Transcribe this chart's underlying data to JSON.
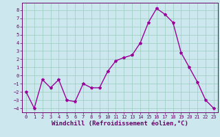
{
  "x": [
    0,
    1,
    2,
    3,
    4,
    5,
    6,
    7,
    8,
    9,
    10,
    11,
    12,
    13,
    14,
    15,
    16,
    17,
    18,
    19,
    20,
    21,
    22,
    23
  ],
  "y": [
    -2,
    -4,
    -0.5,
    -1.5,
    -0.5,
    -3,
    -3.2,
    -1,
    -1.5,
    -1.5,
    0.5,
    1.8,
    2.2,
    2.5,
    4,
    6.5,
    8.2,
    7.5,
    6.5,
    2.8,
    1.0,
    -0.8,
    -3,
    -4
  ],
  "line_color": "#990099",
  "marker": "*",
  "marker_size": 3,
  "bg_color": "#cce8ee",
  "grid_color": "#99ccbb",
  "xlabel": "Windchill (Refroidissement éolien,°C)",
  "xlabel_color": "#660066",
  "xlim": [
    -0.5,
    23.5
  ],
  "ylim": [
    -4.5,
    8.9
  ],
  "yticks": [
    -4,
    -3,
    -2,
    -1,
    0,
    1,
    2,
    3,
    4,
    5,
    6,
    7,
    8
  ],
  "xticks": [
    0,
    1,
    2,
    3,
    4,
    5,
    6,
    7,
    8,
    9,
    10,
    11,
    12,
    13,
    14,
    15,
    16,
    17,
    18,
    19,
    20,
    21,
    22,
    23
  ],
  "tick_color": "#660066",
  "tick_fontsize": 5.0,
  "xlabel_fontsize": 6.5,
  "line_width": 1.0
}
